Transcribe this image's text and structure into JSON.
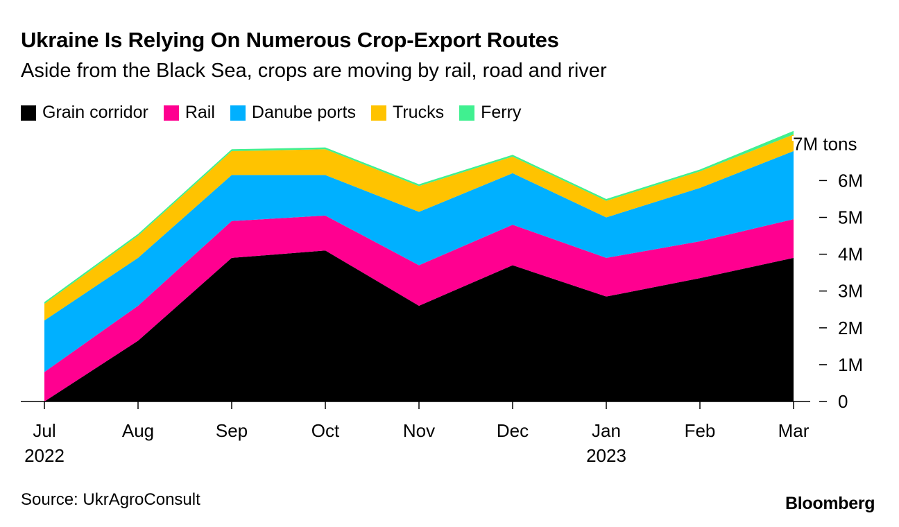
{
  "chart_data": {
    "type": "area",
    "stacked": true,
    "title": "Ukraine Is Relying On Numerous Crop-Export Routes",
    "subtitle": "Aside from the Black Sea, crops are moving by rail, road and river",
    "source": "Source: UkrAgroConsult",
    "brand": "Bloomberg",
    "categories": [
      "Jul",
      "Aug",
      "Sep",
      "Oct",
      "Nov",
      "Dec",
      "Jan",
      "Feb",
      "Mar"
    ],
    "year_labels": [
      {
        "category": "Jul",
        "text": "2022"
      },
      {
        "category": "Jan",
        "text": "2023"
      }
    ],
    "series": [
      {
        "name": "Grain corridor",
        "color": "#000000",
        "values": [
          0.0,
          1.65,
          3.9,
          4.1,
          2.6,
          3.7,
          2.85,
          3.35,
          3.9
        ]
      },
      {
        "name": "Rail",
        "color": "#ff0090",
        "values": [
          0.8,
          0.95,
          1.0,
          0.95,
          1.1,
          1.1,
          1.05,
          1.0,
          1.05
        ]
      },
      {
        "name": "Danube ports",
        "color": "#00b0ff",
        "values": [
          1.4,
          1.3,
          1.25,
          1.1,
          1.45,
          1.4,
          1.1,
          1.45,
          1.85
        ]
      },
      {
        "name": "Trucks",
        "color": "#ffc300",
        "values": [
          0.45,
          0.6,
          0.65,
          0.7,
          0.7,
          0.45,
          0.45,
          0.45,
          0.45
        ]
      },
      {
        "name": "Ferry",
        "color": "#40f090",
        "values": [
          0.05,
          0.05,
          0.05,
          0.05,
          0.05,
          0.05,
          0.05,
          0.05,
          0.1
        ]
      }
    ],
    "y_ticks": [
      {
        "value": 0,
        "label": "0"
      },
      {
        "value": 1,
        "label": "1M"
      },
      {
        "value": 2,
        "label": "2M"
      },
      {
        "value": 3,
        "label": "3M"
      },
      {
        "value": 4,
        "label": "4M"
      },
      {
        "value": 5,
        "label": "5M"
      },
      {
        "value": 6,
        "label": "6M"
      },
      {
        "value": 7,
        "label": "7M tons"
      }
    ],
    "ylim": [
      0,
      7.3
    ],
    "legend_position": "top-left",
    "y_axis_side": "right",
    "grid": false
  }
}
